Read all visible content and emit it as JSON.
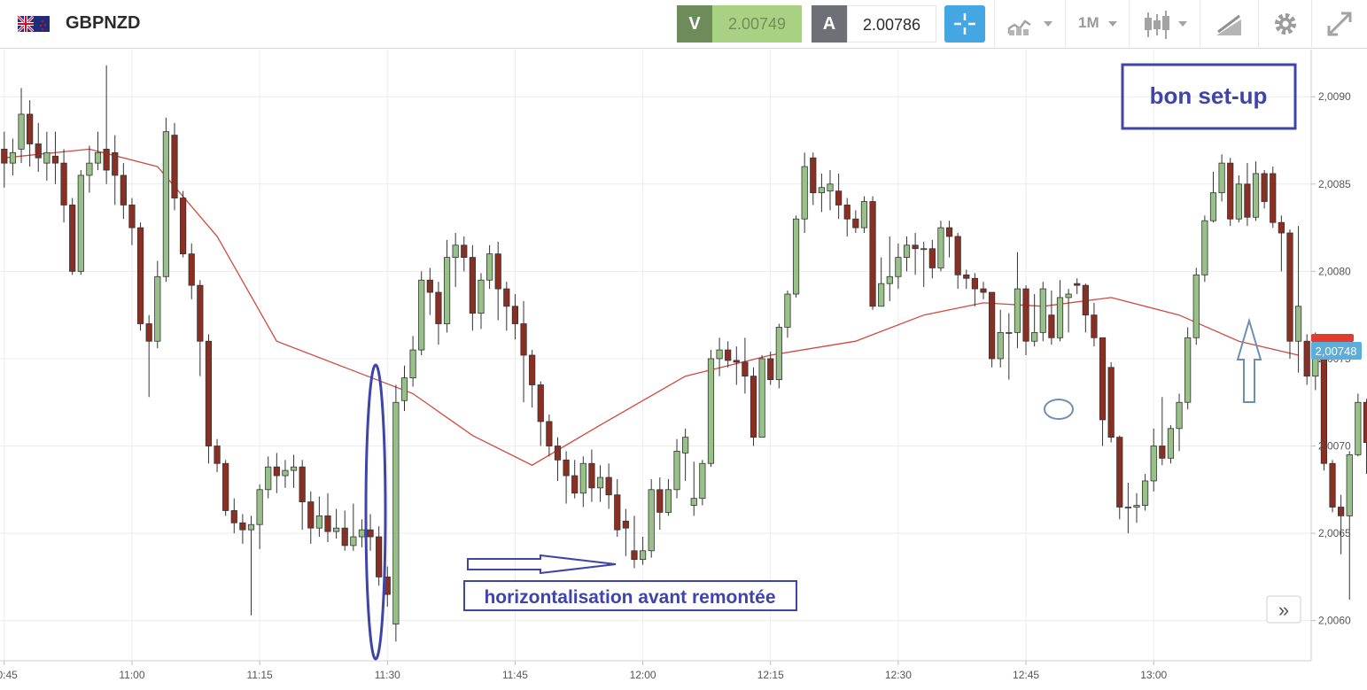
{
  "header": {
    "symbol": "GBPNZD",
    "bid_label": "V",
    "bid_value": "2.00749",
    "ask_label": "A",
    "ask_value": "2.00786",
    "timeframe": "1M",
    "icons": [
      "flag-gb-nz-icon",
      "crosshair-icon",
      "chart-type-icon",
      "candlestick-icon",
      "drawing-tools-icon",
      "gear-icon",
      "fullscreen-icon"
    ]
  },
  "annotations": {
    "setup_box": "bon set-up",
    "horizontal_note": "horizontalisation avant remontée",
    "scroll_button": "»"
  },
  "colors": {
    "bull": "#98c18a",
    "bear": "#8b2f22",
    "ma": "#d04a3e",
    "annotation": "#3f44a8",
    "price_tag": "#5aaed9",
    "price_tag_red": "#e33b2e"
  },
  "chart_data": {
    "type": "candlestick",
    "symbol": "GBPNZD",
    "interval": "1M",
    "current_price_label": "2,00748",
    "x_ticks": [
      "10:45",
      "11:00",
      "11:15",
      "11:30",
      "11:45",
      "12:00",
      "12:15",
      "12:30",
      "12:45",
      "13:00"
    ],
    "y_ticks": [
      "2,0090",
      "2,0085",
      "2,0080",
      "2,0075",
      "2,0070",
      "2,0065",
      "2,0060"
    ],
    "y_tick_values": [
      2.009,
      2.0085,
      2.008,
      2.0075,
      2.007,
      2.0065,
      2.006
    ],
    "ylim": [
      2.00577,
      2.00927
    ],
    "xlim": [
      -0.5,
      153.5
    ],
    "grid": true,
    "moving_average": {
      "x": [
        0,
        10,
        18,
        25,
        32,
        40,
        48,
        55,
        62,
        70,
        80,
        90,
        100,
        108,
        115,
        122,
        130,
        138,
        145,
        152
      ],
      "y": [
        2.00865,
        2.0087,
        2.0086,
        2.0082,
        2.0076,
        2.00745,
        2.0073,
        2.00706,
        2.00689,
        2.00712,
        2.0074,
        2.00752,
        2.0076,
        2.00775,
        2.00782,
        2.0078,
        2.00785,
        2.00775,
        2.0076,
        2.00752
      ]
    },
    "candles": [
      [
        2.0087,
        2.00862,
        2.0088,
        2.00848
      ],
      [
        2.00862,
        2.00868,
        2.00876,
        2.00855
      ],
      [
        2.0087,
        2.0089,
        2.00905,
        2.00862
      ],
      [
        2.0089,
        2.00873,
        2.00898,
        2.0086
      ],
      [
        2.00873,
        2.00865,
        2.00885,
        2.00857
      ],
      [
        2.00862,
        2.00868,
        2.0088,
        2.00852
      ],
      [
        2.00866,
        2.00862,
        2.0088,
        2.0085
      ],
      [
        2.00862,
        2.00838,
        2.0087,
        2.00828
      ],
      [
        2.00838,
        2.008,
        2.00842,
        2.00798
      ],
      [
        2.008,
        2.00855,
        2.00858,
        2.00798
      ],
      [
        2.00855,
        2.00862,
        2.00872,
        2.00845
      ],
      [
        2.00862,
        2.00868,
        2.0088,
        2.00858
      ],
      [
        2.0087,
        2.00858,
        2.00918,
        2.0085
      ],
      [
        2.00868,
        2.00855,
        2.00878,
        2.00838
      ],
      [
        2.00855,
        2.00838,
        2.00862,
        2.0083
      ],
      [
        2.00838,
        2.00825,
        2.00842,
        2.00815
      ],
      [
        2.00825,
        2.0077,
        2.00828,
        2.00766
      ],
      [
        2.0077,
        2.0076,
        2.00775,
        2.00728
      ],
      [
        2.0076,
        2.00797,
        2.00806,
        2.00756
      ],
      [
        2.00797,
        2.0088,
        2.00888,
        2.00794
      ],
      [
        2.00878,
        2.00842,
        2.00885,
        2.00835
      ],
      [
        2.00842,
        2.0081,
        2.00846,
        2.00808
      ],
      [
        2.0081,
        2.00792,
        2.00816,
        2.00784
      ],
      [
        2.00792,
        2.0076,
        2.00795,
        2.0074
      ],
      [
        2.0076,
        2.007,
        2.00764,
        2.0069
      ],
      [
        2.007,
        2.0069,
        2.00704,
        2.00685
      ],
      [
        2.0069,
        2.00663,
        2.00692,
        2.0066
      ],
      [
        2.00663,
        2.00656,
        2.0067,
        2.0065
      ],
      [
        2.00656,
        2.00652,
        2.00661,
        2.00644
      ],
      [
        2.00652,
        2.00655,
        2.0066,
        2.00603
      ],
      [
        2.00655,
        2.00675,
        2.00678,
        2.00641
      ],
      [
        2.00675,
        2.00688,
        2.00694,
        2.0067
      ],
      [
        2.00688,
        2.00683,
        2.00696,
        2.00673
      ],
      [
        2.00683,
        2.00686,
        2.00692,
        2.00676
      ],
      [
        2.00686,
        2.00688,
        2.00695,
        2.00676
      ],
      [
        2.00688,
        2.00668,
        2.00692,
        2.00652
      ],
      [
        2.00668,
        2.00653,
        2.00674,
        2.00644
      ],
      [
        2.00653,
        2.0066,
        2.00671,
        2.00648
      ],
      [
        2.0066,
        2.00651,
        2.00673,
        2.00645
      ],
      [
        2.00651,
        2.00653,
        2.00664,
        2.00647
      ],
      [
        2.00653,
        2.00643,
        2.00663,
        2.0064
      ],
      [
        2.00643,
        2.00648,
        2.00667,
        2.0064
      ],
      [
        2.00648,
        2.00652,
        2.00658,
        2.00642
      ],
      [
        2.00652,
        2.00648,
        2.00661,
        2.0064
      ],
      [
        2.00648,
        2.00625,
        2.00654,
        2.0062
      ],
      [
        2.00625,
        2.00615,
        2.00631,
        2.00608
      ],
      [
        2.00598,
        2.00725,
        2.00735,
        2.00588
      ],
      [
        2.00726,
        2.00739,
        2.00746,
        2.0072
      ],
      [
        2.00739,
        2.00755,
        2.00763,
        2.00734
      ],
      [
        2.00755,
        2.00795,
        2.008,
        2.00752
      ],
      [
        2.00795,
        2.00788,
        2.00802,
        2.00775
      ],
      [
        2.00788,
        2.0077,
        2.00794,
        2.00758
      ],
      [
        2.0077,
        2.00808,
        2.00818,
        2.00765
      ],
      [
        2.00808,
        2.00815,
        2.00822,
        2.00791
      ],
      [
        2.00815,
        2.00808,
        2.0082,
        2.008
      ],
      [
        2.00808,
        2.00776,
        2.00815,
        2.00766
      ],
      [
        2.00776,
        2.00795,
        2.00799,
        2.00767
      ],
      [
        2.00795,
        2.0081,
        2.00815,
        2.0079
      ],
      [
        2.0081,
        2.0079,
        2.00817,
        2.00772
      ],
      [
        2.0079,
        2.0078,
        2.00794,
        2.00766
      ],
      [
        2.0078,
        2.0077,
        2.00787,
        2.00761
      ],
      [
        2.0077,
        2.00752,
        2.00783,
        2.00725
      ],
      [
        2.00752,
        2.00735,
        2.00755,
        2.00722
      ],
      [
        2.00735,
        2.00714,
        2.00737,
        2.007
      ],
      [
        2.00714,
        2.007,
        2.00718,
        2.00694
      ],
      [
        2.007,
        2.00692,
        2.00705,
        2.0068
      ],
      [
        2.00692,
        2.00683,
        2.00697,
        2.00667
      ],
      [
        2.00683,
        2.00673,
        2.00692,
        2.0067
      ],
      [
        2.00673,
        2.0069,
        2.00694,
        2.00665
      ],
      [
        2.0069,
        2.00676,
        2.00698,
        2.00668
      ],
      [
        2.00676,
        2.00682,
        2.00689,
        2.00668
      ],
      [
        2.00682,
        2.00672,
        2.0069,
        2.00664
      ],
      [
        2.00672,
        2.00652,
        2.00681,
        2.00648
      ],
      [
        2.00657,
        2.00653,
        2.00664,
        2.00637
      ],
      [
        2.0064,
        2.00635,
        2.0066,
        2.0063
      ],
      [
        2.00635,
        2.0064,
        2.00648,
        2.00632
      ],
      [
        2.0064,
        2.00675,
        2.00681,
        2.00636
      ],
      [
        2.00675,
        2.00662,
        2.00682,
        2.00652
      ],
      [
        2.00662,
        2.00675,
        2.00681,
        2.0066
      ],
      [
        2.00675,
        2.00697,
        2.00704,
        2.0067
      ],
      [
        2.00696,
        2.00705,
        2.0071,
        2.0068
      ],
      [
        2.00666,
        2.0067,
        2.00691,
        2.0066
      ],
      [
        2.0067,
        2.0069,
        2.00692,
        2.00666
      ],
      [
        2.0069,
        2.0075,
        2.00755,
        2.00688
      ],
      [
        2.0075,
        2.00755,
        2.00762,
        2.0074
      ],
      [
        2.00755,
        2.00749,
        2.0076,
        2.00745
      ],
      [
        2.00749,
        2.00748,
        2.00757,
        2.00735
      ],
      [
        2.00748,
        2.0074,
        2.00762,
        2.0073
      ],
      [
        2.0074,
        2.00705,
        2.00745,
        2.007
      ],
      [
        2.00705,
        2.0075,
        2.00752,
        2.00705
      ],
      [
        2.0075,
        2.00738,
        2.00754,
        2.00735
      ],
      [
        2.00738,
        2.00768,
        2.0077,
        2.00733
      ],
      [
        2.00768,
        2.00787,
        2.00789,
        2.00762
      ],
      [
        2.00787,
        2.0083,
        2.00832,
        2.00785
      ],
      [
        2.0083,
        2.0086,
        2.00868,
        2.00822
      ],
      [
        2.00865,
        2.00845,
        2.00868,
        2.00838
      ],
      [
        2.00845,
        2.00848,
        2.00856,
        2.00834
      ],
      [
        2.00846,
        2.0085,
        2.00858,
        2.00835
      ],
      [
        2.00846,
        2.00838,
        2.00856,
        2.0083
      ],
      [
        2.00838,
        2.0083,
        2.00842,
        2.0082
      ],
      [
        2.0083,
        2.00825,
        2.00835,
        2.00822
      ],
      [
        2.00825,
        2.0084,
        2.00843,
        2.00822
      ],
      [
        2.0084,
        2.0078,
        2.00843,
        2.00778
      ],
      [
        2.0078,
        2.00793,
        2.00808,
        2.0078
      ],
      [
        2.00793,
        2.00797,
        2.0082,
        2.00783
      ],
      [
        2.00797,
        2.00808,
        2.00816,
        2.0079
      ],
      [
        2.00808,
        2.00815,
        2.0082,
        2.008
      ],
      [
        2.00815,
        2.00813,
        2.00822,
        2.00798
      ],
      [
        2.00813,
        2.00813,
        2.00817,
        2.00791
      ],
      [
        2.00813,
        2.00802,
        2.00818,
        2.00796
      ],
      [
        2.00802,
        2.00825,
        2.00829,
        2.008
      ],
      [
        2.00825,
        2.0082,
        2.00829,
        2.00808
      ],
      [
        2.0082,
        2.00798,
        2.00822,
        2.0079
      ],
      [
        2.00798,
        2.00796,
        2.00801,
        2.0079
      ],
      [
        2.00796,
        2.0079,
        2.00799,
        2.0078
      ],
      [
        2.0079,
        2.00788,
        2.00794,
        2.00784
      ],
      [
        2.00788,
        2.0075,
        2.00788,
        2.00745
      ],
      [
        2.0075,
        2.00765,
        2.00778,
        2.00745
      ],
      [
        2.00765,
        2.00765,
        2.00776,
        2.00738
      ],
      [
        2.00765,
        2.0079,
        2.00811,
        2.00756
      ],
      [
        2.0079,
        2.0076,
        2.00792,
        2.00752
      ],
      [
        2.0076,
        2.00765,
        2.00787,
        2.00757
      ],
      [
        2.00765,
        2.0079,
        2.00794,
        2.0076
      ],
      [
        2.00775,
        2.00762,
        2.00789,
        2.00758
      ],
      [
        2.00762,
        2.00785,
        2.00795,
        2.0076
      ],
      [
        2.00785,
        2.00787,
        2.0079,
        2.00765
      ],
      [
        2.00793,
        2.00792,
        2.00796,
        2.00787
      ],
      [
        2.00792,
        2.00775,
        2.00793,
        2.00765
      ],
      [
        2.00775,
        2.00762,
        2.00782,
        2.00757
      ],
      [
        2.00762,
        2.00715,
        2.00762,
        2.007
      ],
      [
        2.00745,
        2.00705,
        2.00748,
        2.00702
      ],
      [
        2.00705,
        2.00665,
        2.00706,
        2.00658
      ],
      [
        2.00665,
        2.00665,
        2.00679,
        2.0065
      ],
      [
        2.00665,
        2.00666,
        2.00673,
        2.00656
      ],
      [
        2.00666,
        2.0068,
        2.00684,
        2.00663
      ],
      [
        2.0068,
        2.007,
        2.0071,
        2.00674
      ],
      [
        2.007,
        2.00693,
        2.00728,
        2.00689
      ],
      [
        2.00693,
        2.0071,
        2.00712,
        2.0069
      ],
      [
        2.0071,
        2.00725,
        2.0073,
        2.00697
      ],
      [
        2.00725,
        2.00762,
        2.00768,
        2.00721
      ],
      [
        2.00762,
        2.00798,
        2.00802,
        2.00758
      ],
      [
        2.00798,
        2.00829,
        2.00832,
        2.00794
      ],
      [
        2.00829,
        2.00845,
        2.00857,
        2.00828
      ],
      [
        2.00845,
        2.00862,
        2.00867,
        2.0084
      ],
      [
        2.00862,
        2.0083,
        2.00865,
        2.00826
      ],
      [
        2.0083,
        2.0085,
        2.00855,
        2.00828
      ],
      [
        2.0085,
        2.00831,
        2.00862,
        2.00826
      ],
      [
        2.00831,
        2.00856,
        2.00863,
        2.00829
      ],
      [
        2.00856,
        2.0084,
        2.00858,
        2.00836
      ],
      [
        2.00856,
        2.00828,
        2.0086,
        2.00825
      ],
      [
        2.00828,
        2.00822,
        2.00832,
        2.008
      ],
      [
        2.00822,
        2.0076,
        2.00824,
        2.0075
      ],
      [
        2.0076,
        2.0078,
        2.00826,
        2.00742
      ],
      [
        2.0076,
        2.0074,
        2.00764,
        2.00735
      ],
      [
        2.0074,
        2.00762,
        2.00765,
        2.00732
      ],
      [
        2.00762,
        2.0069,
        2.00764,
        2.00686
      ],
      [
        2.0069,
        2.00665,
        2.00692,
        2.00662
      ],
      [
        2.00665,
        2.0066,
        2.00672,
        2.00638
      ],
      [
        2.0066,
        2.00695,
        2.00697,
        2.00612
      ],
      [
        2.00695,
        2.00725,
        2.0073,
        2.00694
      ],
      [
        2.00725,
        2.00702,
        2.00727,
        2.00684
      ],
      [
        2.00702,
        2.00722,
        2.00735,
        2.00698
      ],
      [
        2.00722,
        2.0071,
        2.00731,
        2.00682
      ],
      [
        2.0071,
        2.007,
        2.0072,
        2.0069
      ],
      [
        2.007,
        2.00723,
        2.00724,
        2.0068
      ],
      [
        2.00712,
        2.00697,
        2.00716,
        2.00684
      ],
      [
        2.00697,
        2.00715,
        2.00717,
        2.00686
      ],
      [
        2.00715,
        2.0075,
        2.00762,
        2.0071
      ],
      [
        2.0075,
        2.0076,
        2.00795,
        2.00745
      ],
      [
        2.00762,
        2.00775,
        2.00779,
        2.00758
      ],
      [
        2.00775,
        2.00768,
        2.00784,
        2.00766
      ],
      [
        2.00765,
        2.00775,
        2.00782,
        2.0076
      ],
      [
        2.00771,
        2.00762,
        2.0078,
        2.00756
      ],
      [
        2.00752,
        2.00712,
        2.00754,
        2.0071
      ]
    ]
  }
}
